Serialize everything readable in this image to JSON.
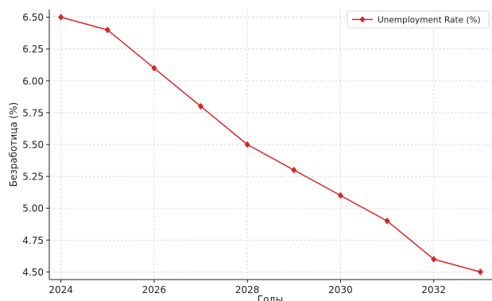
{
  "chart_data": {
    "type": "line",
    "title": "",
    "xlabel": "Годы",
    "ylabel": "Безработица (%)",
    "x": [
      2024,
      2025,
      2026,
      2027,
      2028,
      2029,
      2030,
      2031,
      2032,
      2033
    ],
    "series": [
      {
        "name": "Unemployment Rate (%)",
        "color": "#d62728",
        "marker": "diamond",
        "values": [
          6.5,
          6.4,
          6.1,
          5.8,
          5.5,
          5.3,
          5.1,
          4.9,
          4.6,
          4.5
        ]
      }
    ],
    "xlim": [
      2023.75,
      2033.25
    ],
    "ylim": [
      4.44,
      6.56
    ],
    "xticks": [
      2024,
      2026,
      2028,
      2030,
      2032
    ],
    "xtick_labels": [
      "2024",
      "2026",
      "2028",
      "2030",
      "2032"
    ],
    "yticks": [
      4.5,
      4.75,
      5.0,
      5.25,
      5.5,
      5.75,
      6.0,
      6.25,
      6.5
    ],
    "ytick_labels": [
      "4.50",
      "4.75",
      "5.00",
      "5.25",
      "5.50",
      "5.75",
      "6.00",
      "6.25",
      "6.50"
    ],
    "grid": true,
    "legend_position": "top-right"
  }
}
